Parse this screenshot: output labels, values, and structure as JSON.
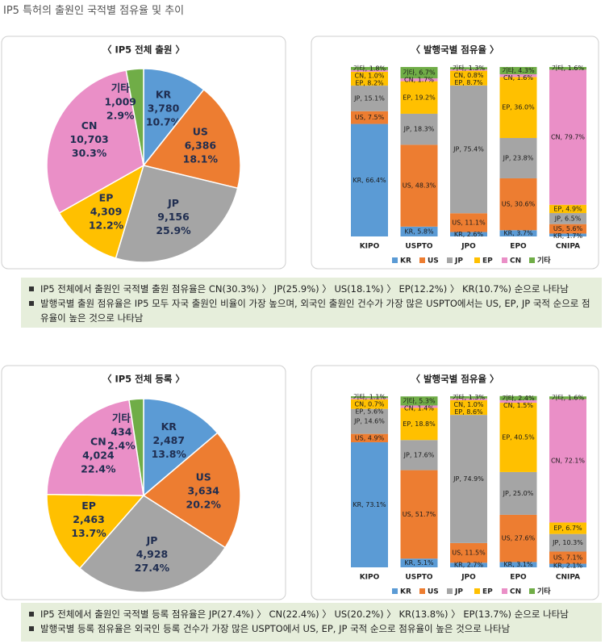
{
  "title": "IP5 특허의 출원인 국적별 점유율 및 추이",
  "chart_data": [
    {
      "type": "pie",
      "title": "〈 IP5 전체 출원 〉",
      "categories": [
        "KR",
        "US",
        "JP",
        "EP",
        "CN",
        "기타"
      ],
      "colors": [
        "#5b9bd5",
        "#ed7d31",
        "#a5a5a5",
        "#ffc000",
        "#ea8fc7",
        "#70ad47"
      ],
      "counts": [
        3780,
        6386,
        9156,
        4309,
        10703,
        1009
      ],
      "count_labels": [
        "3,780",
        "6,386",
        "9,156",
        "4,309",
        "10,703",
        "1,009"
      ],
      "values": [
        10.7,
        18.1,
        25.9,
        12.2,
        30.3,
        2.9
      ],
      "value_labels": [
        "10.7%",
        "18.1%",
        "25.9%",
        "12.2%",
        "30.3%",
        "2.9%"
      ]
    },
    {
      "type": "bar",
      "stacked": true,
      "title": "〈 발행국별 점유율 〉",
      "categories": [
        "KIPO",
        "USPTO",
        "JPO",
        "EPO",
        "CNIPA"
      ],
      "ylim": [
        0,
        100
      ],
      "series": [
        {
          "name": "KR",
          "color": "#5b9bd5",
          "values": [
            66.4,
            5.8,
            2.6,
            3.7,
            1.7
          ],
          "value_labels": [
            "KR, 66.4%",
            "KR, 5.8%",
            "KR, 2.6%",
            "KR, 3.7%",
            "KR, 1.7%"
          ]
        },
        {
          "name": "US",
          "color": "#ed7d31",
          "values": [
            7.5,
            48.3,
            11.1,
            30.6,
            5.6
          ],
          "value_labels": [
            "US, 7.5%",
            "US, 48.3%",
            "US, 11.1%",
            "US, 30.6%",
            "US, 5.6%"
          ]
        },
        {
          "name": "JP",
          "color": "#a5a5a5",
          "values": [
            15.1,
            18.3,
            75.4,
            23.8,
            6.5
          ],
          "value_labels": [
            "JP, 15.1%",
            "JP, 18.3%",
            "JP, 75.4%",
            "JP, 23.8%",
            "JP, 6.5%"
          ]
        },
        {
          "name": "EP",
          "color": "#ffc000",
          "values": [
            8.2,
            19.2,
            8.7,
            36.0,
            4.9
          ],
          "value_labels": [
            "EP, 8.2%",
            "EP, 19.2%",
            "EP, 8.7%",
            "EP, 36.0%",
            "EP, 4.9%"
          ]
        },
        {
          "name": "CN",
          "color": "#ea8fc7",
          "values": [
            1.0,
            1.7,
            0.8,
            1.6,
            79.7
          ],
          "value_labels": [
            "CN, 1.0%",
            "CN, 1.7%",
            "CN, 0.8%",
            "CN, 1.6%",
            "CN, 79.7%"
          ]
        },
        {
          "name": "기타",
          "color": "#70ad47",
          "values": [
            1.8,
            6.7,
            1.3,
            4.3,
            1.6
          ],
          "value_labels": [
            "기타, 1.8%",
            "기타, 6.7%",
            "기타, 1.3%",
            "기타, 4.3%",
            "기타, 1.6%"
          ]
        }
      ]
    },
    {
      "type": "pie",
      "title": "〈 IP5 전체 등록 〉",
      "categories": [
        "KR",
        "US",
        "JP",
        "EP",
        "CN",
        "기타"
      ],
      "colors": [
        "#5b9bd5",
        "#ed7d31",
        "#a5a5a5",
        "#ffc000",
        "#ea8fc7",
        "#70ad47"
      ],
      "counts": [
        2487,
        3634,
        4928,
        2463,
        4024,
        434
      ],
      "count_labels": [
        "2,487",
        "3,634",
        "4,928",
        "2,463",
        "4,024",
        "434"
      ],
      "values": [
        13.8,
        20.2,
        27.4,
        13.7,
        22.4,
        2.4
      ],
      "value_labels": [
        "13.8%",
        "20.2%",
        "27.4%",
        "13.7%",
        "22.4%",
        "2.4%"
      ]
    },
    {
      "type": "bar",
      "stacked": true,
      "title": "〈 발행국별 점유율 〉",
      "categories": [
        "KIPO",
        "USPTO",
        "JPO",
        "EPO",
        "CNIPA"
      ],
      "ylim": [
        0,
        100
      ],
      "series": [
        {
          "name": "KR",
          "color": "#5b9bd5",
          "values": [
            73.1,
            5.1,
            2.7,
            3.1,
            2.1
          ],
          "value_labels": [
            "KR, 73.1%",
            "KR, 5.1%",
            "KR, 2.7%",
            "KR, 3.1%",
            "KR, 2.1%"
          ]
        },
        {
          "name": "US",
          "color": "#ed7d31",
          "values": [
            4.9,
            51.7,
            11.5,
            27.6,
            7.1
          ],
          "value_labels": [
            "US, 4.9%",
            "US, 51.7%",
            "US, 11.5%",
            "US, 27.6%",
            "US, 7.1%"
          ]
        },
        {
          "name": "JP",
          "color": "#a5a5a5",
          "values": [
            14.6,
            17.6,
            74.9,
            25.0,
            10.3
          ],
          "value_labels": [
            "JP, 14.6%",
            "JP, 17.6%",
            "JP, 74.9%",
            "JP, 25.0%",
            "JP, 10.3%"
          ]
        },
        {
          "name": "EP",
          "color": "#ffc000",
          "values": [
            5.6,
            18.8,
            8.6,
            40.5,
            6.7
          ],
          "value_labels": [
            "EP, 5.6%",
            "EP, 18.8%",
            "EP, 8.6%",
            "EP, 40.5%",
            "EP, 6.7%"
          ]
        },
        {
          "name": "CN",
          "color": "#ea8fc7",
          "values": [
            0.7,
            1.4,
            1.0,
            1.5,
            72.1
          ],
          "value_labels": [
            "CN, 0.7%",
            "CN, 1.4%",
            "CN, 1.0%",
            "CN, 1.5%",
            "CN, 72.1%"
          ]
        },
        {
          "name": "기타",
          "color": "#70ad47",
          "values": [
            1.1,
            5.3,
            1.3,
            2.4,
            1.6
          ],
          "value_labels": [
            "기타, 1.1%",
            "기타, 5.3%",
            "기타, 1.3%",
            "기타, 2.4%",
            "기타, 1.6%"
          ]
        }
      ]
    }
  ],
  "notes": [
    [
      "IP5 전체에서 출원인 국적별 출원 점유율은 CN(30.3%) 〉 JP(25.9%) 〉 US(18.1%) 〉 EP(12.2%) 〉 KR(10.7%) 순으로 나타남",
      "발행국별 출원 점유율은 IP5 모두 자국 출원인 비율이 가장 높으며, 외국인 출원인 건수가 가장 많은 USPTO에서는 US, EP, JP 국적 순으로 점유율이 높은 것으로 나타남"
    ],
    [
      "IP5 전체에서 출원인 국적별 등록 점유율은 JP(27.4%) 〉 CN(22.4%) 〉 US(20.2%) 〉 KR(13.8%) 〉 EP(13.7%) 순으로 나타남",
      "발행국별 등록 점유율은 외국인 등록 건수가 가장 많은 USPTO에서 US, EP, JP 국적 순으로 점유율이 높은 것으로 나타남"
    ]
  ]
}
